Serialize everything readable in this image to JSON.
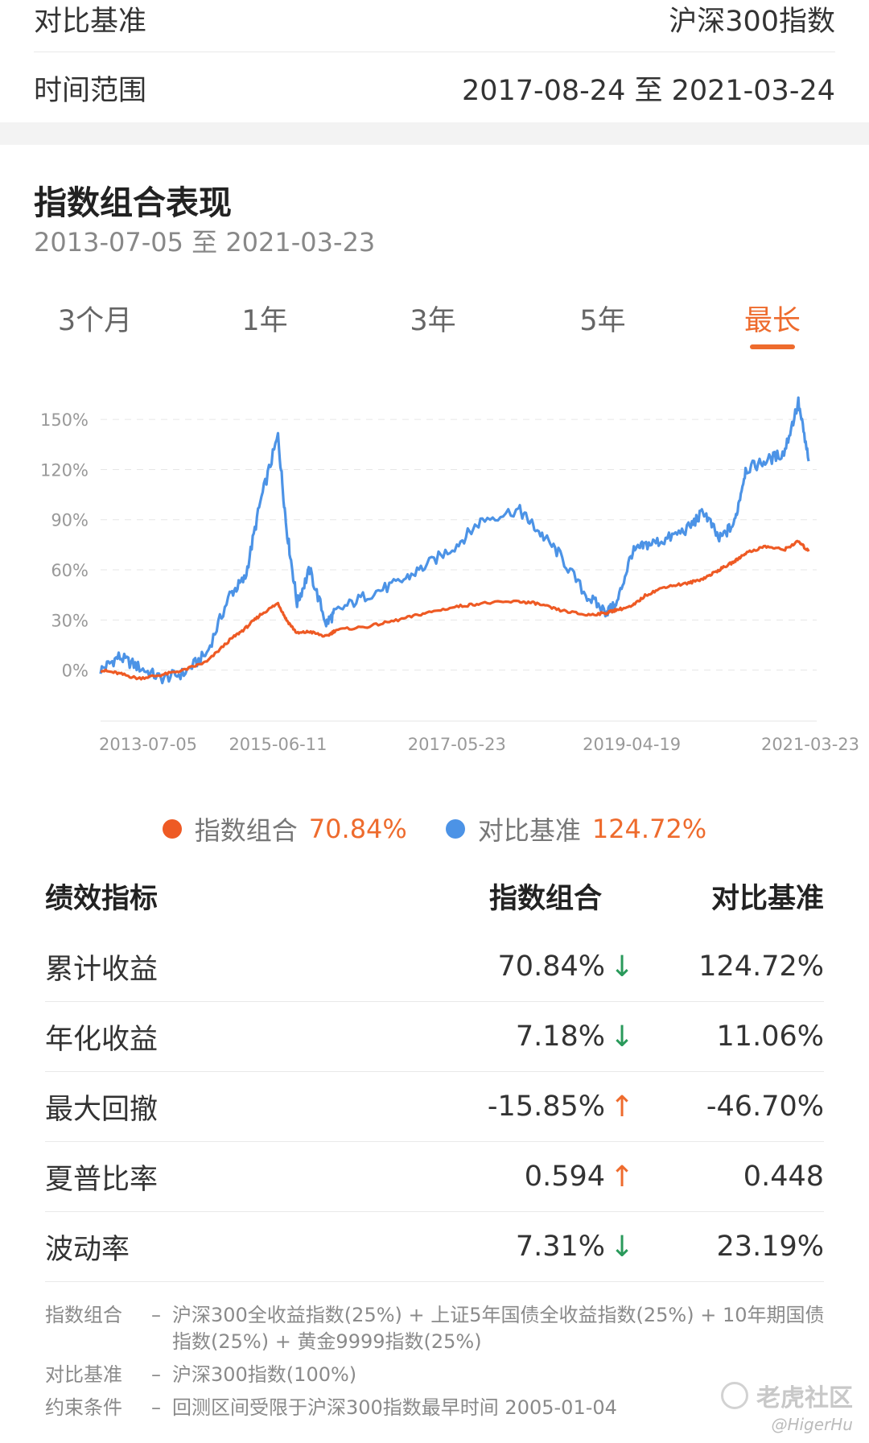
{
  "info": {
    "benchmark_label": "对比基准",
    "benchmark_value": "沪深300指数",
    "time_label": "时间范围",
    "time_value": "2017-08-24 至 2021-03-24"
  },
  "performance": {
    "title": "指数组合表现",
    "range": "2013-07-05 至 2021-03-23"
  },
  "tabs": [
    {
      "label": "3个月",
      "active": false
    },
    {
      "label": "1年",
      "active": false
    },
    {
      "label": "3年",
      "active": false
    },
    {
      "label": "5年",
      "active": false
    },
    {
      "label": "最长",
      "active": true
    }
  ],
  "chart_data": {
    "type": "line",
    "y_ticks": [
      "150%",
      "120%",
      "90%",
      "60%",
      "30%",
      "0%"
    ],
    "y_tick_values": [
      150,
      120,
      90,
      60,
      30,
      0
    ],
    "ylim": [
      -18,
      165
    ],
    "x_ticks": [
      "2013-07-05",
      "2015-06-11",
      "2017-05-23",
      "2019-04-19",
      "2021-03-23"
    ],
    "x": [
      "2013-07-05",
      "2013-09-15",
      "2013-12-01",
      "2014-03-01",
      "2014-06-01",
      "2014-09-01",
      "2014-12-01",
      "2015-02-01",
      "2015-04-01",
      "2015-06-11",
      "2015-07-15",
      "2015-08-26",
      "2015-10-15",
      "2015-12-20",
      "2016-01-28",
      "2016-06-01",
      "2016-10-01",
      "2017-01-15",
      "2017-05-23",
      "2017-09-01",
      "2018-01-24",
      "2018-04-01",
      "2018-07-01",
      "2018-10-18",
      "2019-01-04",
      "2019-02-15",
      "2019-04-19",
      "2019-06-15",
      "2019-09-01",
      "2019-12-01",
      "2020-02-01",
      "2020-04-01",
      "2020-06-01",
      "2020-07-15",
      "2020-10-01",
      "2020-12-15",
      "2021-02-10",
      "2021-03-23"
    ],
    "series": [
      {
        "name": "指数组合",
        "color": "#ee5a24",
        "values": [
          0,
          -2,
          -5,
          -3,
          0,
          5,
          18,
          25,
          33,
          40,
          30,
          22,
          23,
          20,
          24,
          26,
          30,
          34,
          38,
          40,
          41,
          40,
          36,
          33,
          34,
          36,
          38,
          45,
          50,
          52,
          55,
          60,
          65,
          70,
          74,
          72,
          77,
          71
        ]
      },
      {
        "name": "对比基准",
        "color": "#4c93e6",
        "values": [
          0,
          8,
          2,
          -5,
          -2,
          10,
          45,
          55,
          100,
          140,
          85,
          40,
          60,
          28,
          35,
          45,
          52,
          62,
          75,
          90,
          96,
          85,
          70,
          45,
          35,
          38,
          70,
          75,
          78,
          85,
          95,
          78,
          88,
          120,
          125,
          130,
          160,
          125
        ]
      }
    ]
  },
  "legend": [
    {
      "name": "指数组合",
      "value": "70.84%",
      "color": "#ee5a24"
    },
    {
      "name": "对比基准",
      "value": "124.72%",
      "color": "#4c93e6"
    }
  ],
  "metrics": {
    "headers": [
      "绩效指标",
      "指数组合",
      "对比基准"
    ],
    "rows": [
      {
        "name": "累计收益",
        "portfolio": "70.84%",
        "arrow": "↓",
        "benchmark": "124.72%"
      },
      {
        "name": "年化收益",
        "portfolio": "7.18%",
        "arrow": "↓",
        "benchmark": "11.06%"
      },
      {
        "name": "最大回撤",
        "portfolio": "-15.85%",
        "arrow": "↑",
        "benchmark": "-46.70%"
      },
      {
        "name": "夏普比率",
        "portfolio": "0.594",
        "arrow": "↑",
        "benchmark": "0.448"
      },
      {
        "name": "波动率",
        "portfolio": "7.31%",
        "arrow": "↓",
        "benchmark": "23.19%"
      }
    ]
  },
  "notes": [
    {
      "key": "指数组合",
      "dash": "–",
      "value": "沪深300全收益指数(25%) + 上证5年国债全收益指数(25%) + 10年期国债指数(25%) + 黄金9999指数(25%)"
    },
    {
      "key": "对比基准",
      "dash": "–",
      "value": "沪深300指数(100%)"
    },
    {
      "key": "约束条件",
      "dash": "–",
      "value": "回测区间受限于沪深300指数最早时间 2005-01-04"
    }
  ],
  "watermark": {
    "text": "老虎社区",
    "sub": "@HigerHu"
  }
}
